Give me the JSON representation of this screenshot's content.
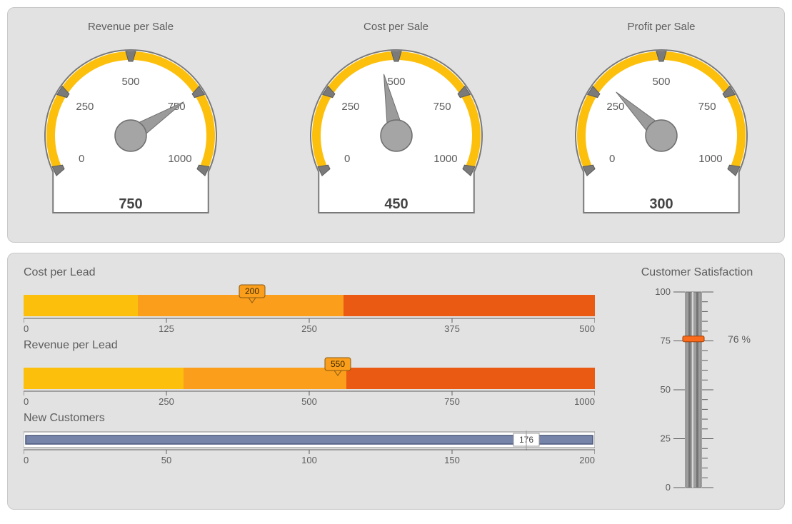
{
  "colors": {
    "panel_bg": "#e2e2e2",
    "panel_border": "#c9c9c9",
    "text": "#5d5d5d",
    "gauge_ring": "#fcc00c",
    "gauge_outline": "#797979",
    "gauge_face": "#ffffff",
    "needle": "#9b9b9b",
    "hub": "#a5a5a5",
    "bar_seg1": "#fcc00c",
    "bar_seg2": "#fa9e1c",
    "bar_seg3": "#f3711a",
    "bar_seg4": "#eb5a13",
    "bar_marker_fill": "#fa9e1c",
    "blue_bar": "#7684a9",
    "blue_bar_border": "#4b587b",
    "thermo_fill": "#9e9e9e",
    "thermo_lip": "#747474",
    "thermo_marker": "#fa6b1c"
  },
  "gauges": [
    {
      "title": "Revenue per Sale",
      "min": 0,
      "max": 1000,
      "ticks": [
        0,
        250,
        500,
        750,
        1000
      ],
      "value": 750,
      "display_value": "750"
    },
    {
      "title": "Cost per Sale",
      "min": 0,
      "max": 1000,
      "ticks": [
        0,
        250,
        500,
        750,
        1000
      ],
      "value": 450,
      "display_value": "450"
    },
    {
      "title": "Profit per Sale",
      "min": 0,
      "max": 1000,
      "ticks": [
        0,
        250,
        500,
        750,
        1000
      ],
      "value": 300,
      "display_value": "300"
    }
  ],
  "hbars": [
    {
      "title": "Cost per Lead",
      "min": 0,
      "max": 500,
      "ticks": [
        0,
        125,
        250,
        375,
        500
      ],
      "segments": [
        {
          "from": 0,
          "to": 100,
          "color": "#fcc00c"
        },
        {
          "from": 100,
          "to": 280,
          "color": "#fa9e1c"
        },
        {
          "from": 280,
          "to": 500,
          "color": "#eb5a13"
        }
      ],
      "marker_value": 200,
      "marker_label": "200"
    },
    {
      "title": "Revenue per Lead",
      "min": 0,
      "max": 1000,
      "ticks": [
        0,
        250,
        500,
        750,
        1000
      ],
      "segments": [
        {
          "from": 0,
          "to": 280,
          "color": "#fcc00c"
        },
        {
          "from": 280,
          "to": 565,
          "color": "#fa9e1c"
        },
        {
          "from": 565,
          "to": 1000,
          "color": "#eb5a13"
        }
      ],
      "marker_value": 550,
      "marker_label": "550"
    }
  ],
  "simple_bar": {
    "title": "New Customers",
    "min": 0,
    "max": 200,
    "ticks": [
      0,
      50,
      100,
      150,
      200
    ],
    "value": 176,
    "value_label": "176"
  },
  "thermo": {
    "title": "Customer Satisfaction",
    "min": 0,
    "max": 100,
    "ticks": [
      0,
      25,
      50,
      75,
      100
    ],
    "value": 76,
    "value_label": "76 %"
  }
}
